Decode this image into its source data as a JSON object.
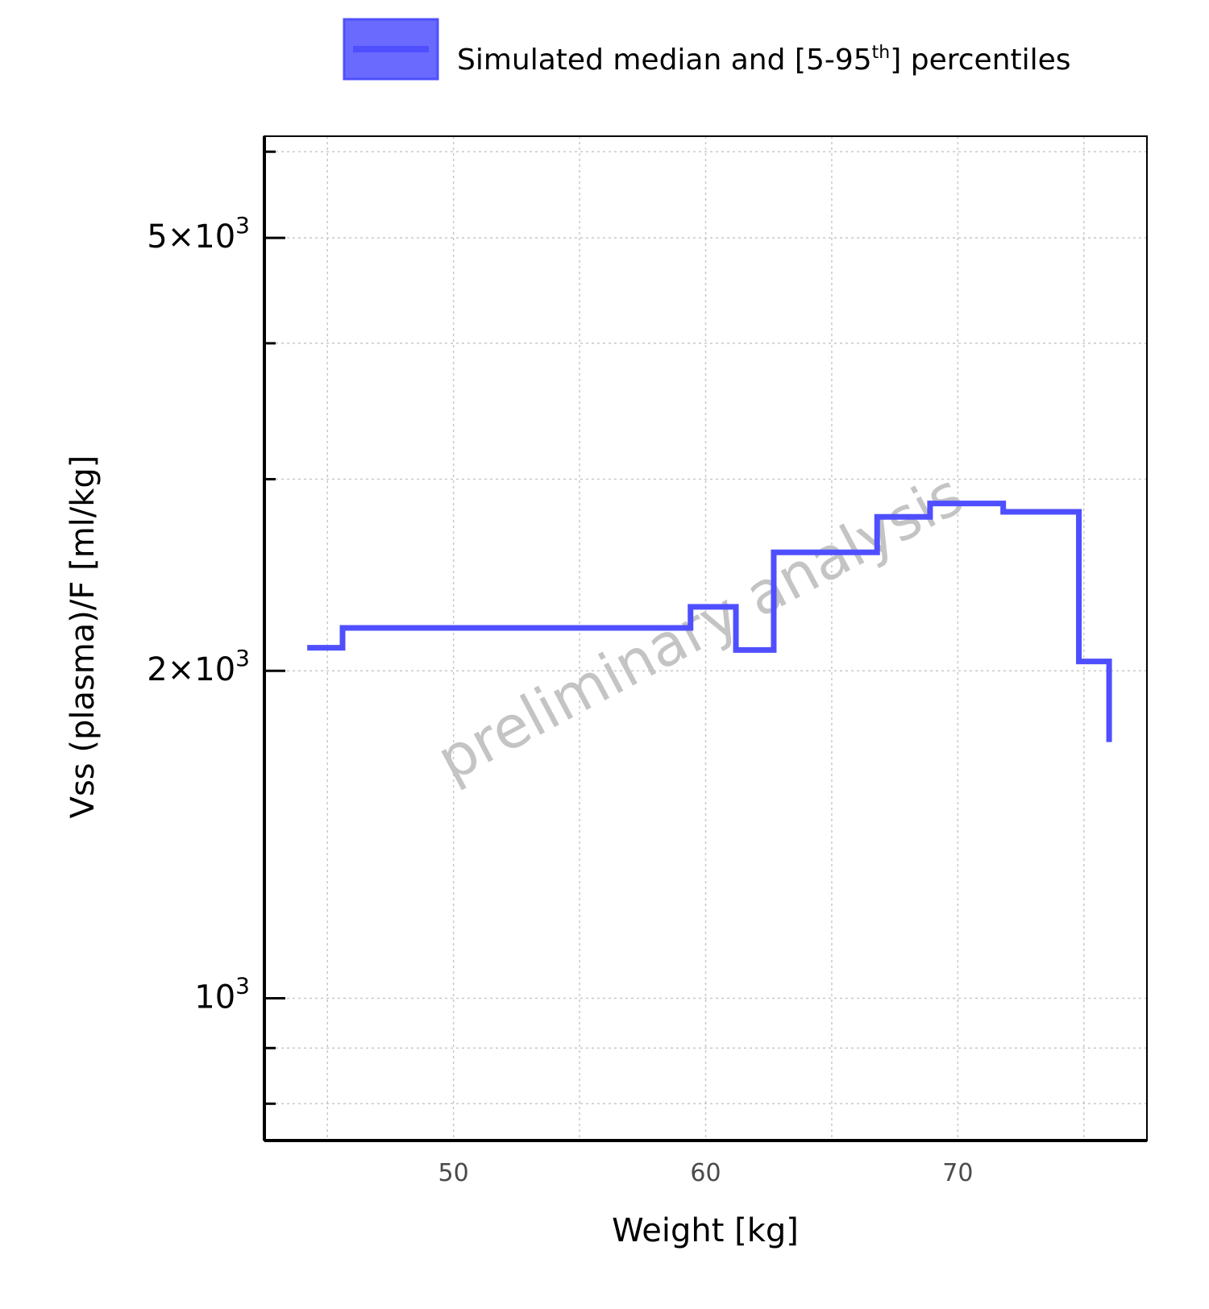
{
  "legend": {
    "label_prefix": "Simulated median and [5-95",
    "label_sup": "th",
    "label_suffix": "] percentiles"
  },
  "watermark": "preliminary analysis",
  "colors": {
    "series": "#4f4fff",
    "band_fill": "#6a6aff",
    "axis": "#000000",
    "grid": "#c8c8c8",
    "watermark": "#c4c4c4"
  },
  "chart_data": {
    "type": "line",
    "step": true,
    "xlabel": "Weight [kg]",
    "ylabel": "Vss (plasma)/F [ml/kg]",
    "y_scale": "log",
    "xlim": [
      42.5,
      77.5
    ],
    "ylim": [
      740,
      6200
    ],
    "x_ticks": [
      50,
      60,
      70
    ],
    "y_ticks": [
      {
        "value": 1000,
        "base": "10",
        "exp": "3",
        "mantissa": ""
      },
      {
        "value": 2000,
        "base": "10",
        "exp": "3",
        "mantissa": "2"
      },
      {
        "value": 5000,
        "base": "10",
        "exp": "3",
        "mantissa": "5"
      }
    ],
    "y_minor_ticks": [
      800,
      900,
      3000,
      4000,
      6000
    ],
    "grid": true,
    "legend_position": "top",
    "series": [
      {
        "name": "Simulated median and [5-95th] percentiles",
        "x": [
          44.2,
          45.6,
          53.7,
          59.4,
          61.2,
          62.7,
          65.4,
          66.8,
          68.9,
          71.8,
          74.8,
          76.0
        ],
        "values": [
          2100,
          2190,
          2190,
          2290,
          2090,
          2570,
          2570,
          2770,
          2850,
          2800,
          2040,
          1720
        ]
      }
    ]
  }
}
